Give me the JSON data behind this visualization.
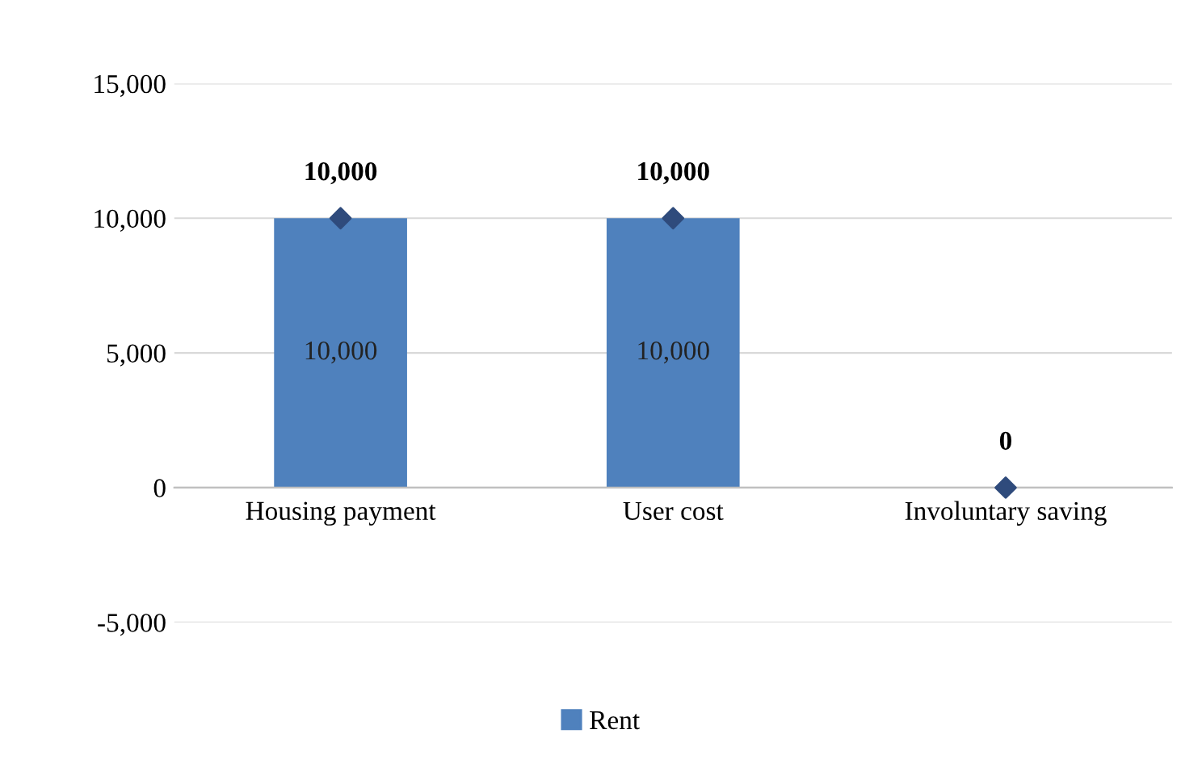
{
  "chart_data": {
    "type": "bar",
    "categories": [
      "Housing payment",
      "User cost",
      "Involuntary saving"
    ],
    "series": [
      {
        "name": "Rent",
        "color": "#4f81bd",
        "values": [
          10000,
          10000,
          0
        ],
        "value_labels": [
          "10,000",
          "10,000",
          null
        ]
      },
      {
        "type": "scatter",
        "color": "#2f4b7c",
        "x": [
          "Housing payment",
          "User cost",
          "Involuntary saving"
        ],
        "values": [
          10000,
          10000,
          0
        ],
        "value_labels": [
          "10,000",
          "10,000",
          "0"
        ],
        "marker": "diamond"
      }
    ],
    "ylim": [
      -5000,
      15000
    ],
    "yticks": [
      {
        "value": -5000,
        "label": "-5,000"
      },
      {
        "value": 0,
        "label": "0"
      },
      {
        "value": 5000,
        "label": "5,000"
      },
      {
        "value": 10000,
        "label": "10,000"
      },
      {
        "value": 15000,
        "label": "15,000"
      }
    ],
    "grid": "y",
    "legend": "bottom"
  }
}
